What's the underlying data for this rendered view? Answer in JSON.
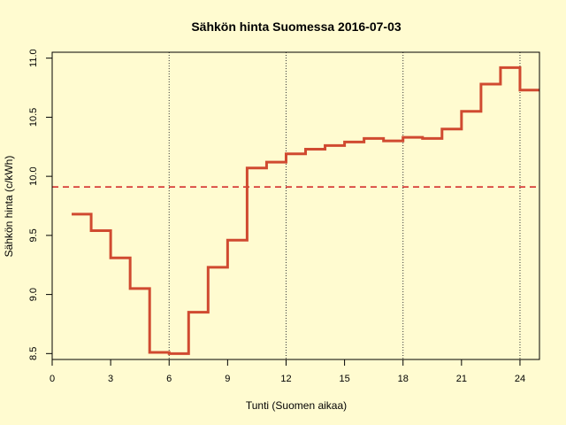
{
  "chart_data": {
    "type": "line",
    "step": true,
    "title": "Sähkön hinta Suomessa 2016-07-03",
    "xlabel": "Tunti (Suomen aikaa)",
    "ylabel": "Sähkön hinta (c/kWh)",
    "xlim": [
      0,
      25
    ],
    "ylim": [
      8.45,
      11.05
    ],
    "xticks": [
      0,
      3,
      6,
      9,
      12,
      15,
      18,
      21,
      24
    ],
    "xtick_labels": [
      "0",
      "3",
      "6",
      "9",
      "12",
      "15",
      "18",
      "21",
      "24"
    ],
    "yticks": [
      8.5,
      9.0,
      9.5,
      10.0,
      10.5,
      11.0
    ],
    "ytick_labels": [
      "8.5",
      "9.0",
      "9.5",
      "10.0",
      "10.5",
      "11.0"
    ],
    "vlines": [
      6,
      12,
      18,
      24
    ],
    "average": 9.91,
    "colors": {
      "series": "#d04a30",
      "average": "#d02020",
      "background": "#fffbd0"
    },
    "series": [
      {
        "x": [
          1,
          2,
          3,
          4,
          5,
          6,
          7,
          8,
          9,
          10,
          11,
          12,
          13,
          14,
          15,
          16,
          17,
          18,
          19,
          20,
          21,
          22,
          23,
          24
        ],
        "values": [
          9.68,
          9.54,
          9.31,
          9.05,
          8.51,
          8.5,
          8.85,
          9.23,
          9.46,
          10.07,
          10.12,
          10.19,
          10.23,
          10.26,
          10.29,
          10.32,
          10.3,
          10.33,
          10.32,
          10.4,
          10.55,
          10.78,
          10.92,
          10.73
        ]
      }
    ]
  }
}
